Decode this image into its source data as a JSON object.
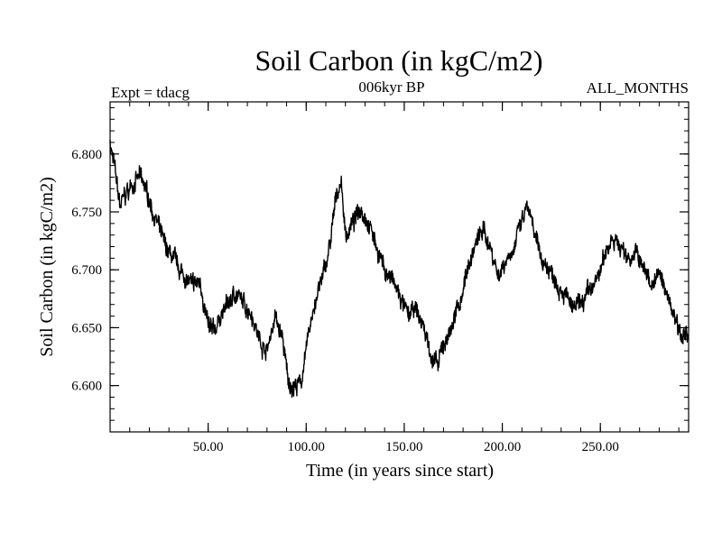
{
  "chart_data": {
    "type": "line",
    "title": "Soil Carbon (in kgC/m2)",
    "subtitle_left": "Expt = tdacg",
    "subtitle_center": "006kyr BP",
    "subtitle_right": "ALL_MONTHS",
    "xlabel": "Time (in years since start)",
    "ylabel": "Soil Carbon (in kgC/m2)",
    "xlim": [
      0,
      295
    ],
    "ylim": [
      6.56,
      6.845
    ],
    "x_ticks": [
      50,
      100,
      150,
      200,
      250
    ],
    "x_tick_labels": [
      "50.00",
      "100.00",
      "150.00",
      "200.00",
      "250.00"
    ],
    "y_ticks": [
      6.6,
      6.65,
      6.7,
      6.75,
      6.8
    ],
    "y_tick_labels": [
      "6.600",
      "6.650",
      "6.700",
      "6.750",
      "6.800"
    ],
    "grid": false,
    "series": [
      {
        "name": "Soil Carbon",
        "color": "#000000",
        "x": [
          0,
          2,
          5,
          8,
          12,
          15,
          18,
          22,
          25,
          28,
          32,
          35,
          38,
          42,
          46,
          50,
          53,
          56,
          60,
          64,
          68,
          72,
          76,
          80,
          84,
          88,
          91,
          94,
          97,
          100,
          104,
          108,
          112,
          116,
          118,
          120,
          124,
          128,
          132,
          136,
          140,
          144,
          148,
          152,
          156,
          160,
          164,
          167,
          170,
          174,
          178,
          182,
          186,
          190,
          194,
          198,
          202,
          206,
          210,
          213,
          216,
          220,
          224,
          228,
          232,
          236,
          240,
          244,
          248,
          252,
          256,
          260,
          264,
          268,
          272,
          276,
          280,
          284,
          288,
          292,
          295
        ],
        "values": [
          6.81,
          6.79,
          6.755,
          6.765,
          6.775,
          6.78,
          6.77,
          6.75,
          6.735,
          6.72,
          6.71,
          6.7,
          6.695,
          6.685,
          6.69,
          6.65,
          6.645,
          6.66,
          6.67,
          6.68,
          6.67,
          6.665,
          6.64,
          6.63,
          6.66,
          6.64,
          6.6,
          6.6,
          6.6,
          6.63,
          6.67,
          6.69,
          6.72,
          6.77,
          6.775,
          6.73,
          6.74,
          6.755,
          6.74,
          6.72,
          6.7,
          6.69,
          6.675,
          6.66,
          6.665,
          6.65,
          6.625,
          6.615,
          6.635,
          6.65,
          6.67,
          6.7,
          6.72,
          6.735,
          6.72,
          6.695,
          6.71,
          6.72,
          6.74,
          6.755,
          6.73,
          6.71,
          6.7,
          6.69,
          6.68,
          6.665,
          6.67,
          6.68,
          6.69,
          6.71,
          6.73,
          6.72,
          6.71,
          6.715,
          6.7,
          6.69,
          6.695,
          6.68,
          6.66,
          6.645,
          6.64
        ]
      }
    ]
  }
}
